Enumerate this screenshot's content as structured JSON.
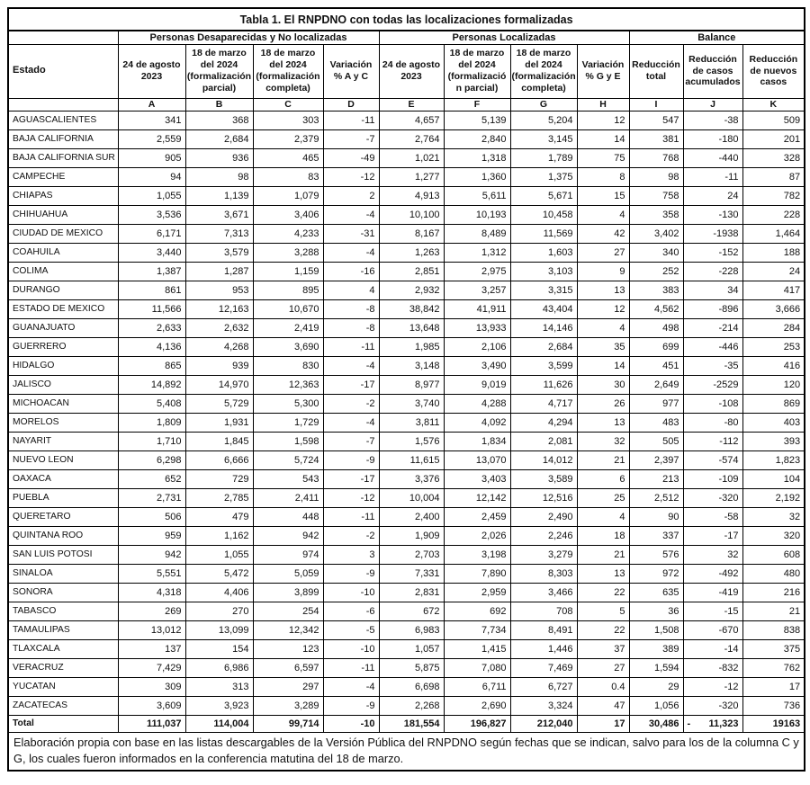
{
  "title": "Tabla 1. El RNPDNO con todas las localizaciones formalizadas",
  "colors": {
    "border": "#000000",
    "text": "#111111",
    "background": "#ffffff"
  },
  "header": {
    "estado_label": "Estado",
    "groups": [
      {
        "label": "Personas Desaparecidas y No localizadas",
        "colspan": 4
      },
      {
        "label": "Personas Localizadas",
        "colspan": 4
      },
      {
        "label": "Balance",
        "colspan": 3
      }
    ],
    "columns": [
      {
        "letter": "A",
        "label": "24 de agosto\n2023"
      },
      {
        "letter": "B",
        "label": "18 de marzo\ndel 2024\n(formalización\nparcial)"
      },
      {
        "letter": "C",
        "label": "18 de marzo\ndel 2024\n(formalización\ncompleta)"
      },
      {
        "letter": "D",
        "label": "Variación\n% A y C"
      },
      {
        "letter": "E",
        "label": "24 de agosto\n2023"
      },
      {
        "letter": "F",
        "label": "18 de marzo\ndel 2024\n(formalizació\nn parcial)"
      },
      {
        "letter": "G",
        "label": "18 de marzo\ndel 2024\n(formalización\ncompleta)"
      },
      {
        "letter": "H",
        "label": "Variación\n% G y E"
      },
      {
        "letter": "I",
        "label": "Reducción\ntotal"
      },
      {
        "letter": "J",
        "label": "Reducción\nde casos\nacumulados"
      },
      {
        "letter": "K",
        "label": "Reducción\nde nuevos\ncasos"
      }
    ]
  },
  "rows": [
    {
      "estado": "AGUASCALIENTES",
      "values": [
        "341",
        "368",
        "303",
        "-11",
        "4,657",
        "5,139",
        "5,204",
        "12",
        "547",
        "-38",
        "509"
      ]
    },
    {
      "estado": "BAJA CALIFORNIA",
      "values": [
        "2,559",
        "2,684",
        "2,379",
        "-7",
        "2,764",
        "2,840",
        "3,145",
        "14",
        "381",
        "-180",
        "201"
      ]
    },
    {
      "estado": "BAJA CALIFORNIA SUR",
      "values": [
        "905",
        "936",
        "465",
        "-49",
        "1,021",
        "1,318",
        "1,789",
        "75",
        "768",
        "-440",
        "328"
      ]
    },
    {
      "estado": "CAMPECHE",
      "values": [
        "94",
        "98",
        "83",
        "-12",
        "1,277",
        "1,360",
        "1,375",
        "8",
        "98",
        "-11",
        "87"
      ]
    },
    {
      "estado": "CHIAPAS",
      "values": [
        "1,055",
        "1,139",
        "1,079",
        "2",
        "4,913",
        "5,611",
        "5,671",
        "15",
        "758",
        "24",
        "782"
      ]
    },
    {
      "estado": "CHIHUAHUA",
      "values": [
        "3,536",
        "3,671",
        "3,406",
        "-4",
        "10,100",
        "10,193",
        "10,458",
        "4",
        "358",
        "-130",
        "228"
      ]
    },
    {
      "estado": "CIUDAD DE MEXICO",
      "values": [
        "6,171",
        "7,313",
        "4,233",
        "-31",
        "8,167",
        "8,489",
        "11,569",
        "42",
        "3,402",
        "-1938",
        "1,464"
      ]
    },
    {
      "estado": "COAHUILA",
      "values": [
        "3,440",
        "3,579",
        "3,288",
        "-4",
        "1,263",
        "1,312",
        "1,603",
        "27",
        "340",
        "-152",
        "188"
      ]
    },
    {
      "estado": "COLIMA",
      "values": [
        "1,387",
        "1,287",
        "1,159",
        "-16",
        "2,851",
        "2,975",
        "3,103",
        "9",
        "252",
        "-228",
        "24"
      ]
    },
    {
      "estado": "DURANGO",
      "values": [
        "861",
        "953",
        "895",
        "4",
        "2,932",
        "3,257",
        "3,315",
        "13",
        "383",
        "34",
        "417"
      ]
    },
    {
      "estado": "ESTADO DE MEXICO",
      "values": [
        "11,566",
        "12,163",
        "10,670",
        "-8",
        "38,842",
        "41,911",
        "43,404",
        "12",
        "4,562",
        "-896",
        "3,666"
      ]
    },
    {
      "estado": "GUANAJUATO",
      "values": [
        "2,633",
        "2,632",
        "2,419",
        "-8",
        "13,648",
        "13,933",
        "14,146",
        "4",
        "498",
        "-214",
        "284"
      ]
    },
    {
      "estado": "GUERRERO",
      "values": [
        "4,136",
        "4,268",
        "3,690",
        "-11",
        "1,985",
        "2,106",
        "2,684",
        "35",
        "699",
        "-446",
        "253"
      ]
    },
    {
      "estado": "HIDALGO",
      "values": [
        "865",
        "939",
        "830",
        "-4",
        "3,148",
        "3,490",
        "3,599",
        "14",
        "451",
        "-35",
        "416"
      ]
    },
    {
      "estado": "JALISCO",
      "values": [
        "14,892",
        "14,970",
        "12,363",
        "-17",
        "8,977",
        "9,019",
        "11,626",
        "30",
        "2,649",
        "-2529",
        "120"
      ]
    },
    {
      "estado": "MICHOACAN",
      "values": [
        "5,408",
        "5,729",
        "5,300",
        "-2",
        "3,740",
        "4,288",
        "4,717",
        "26",
        "977",
        "-108",
        "869"
      ]
    },
    {
      "estado": "MORELOS",
      "values": [
        "1,809",
        "1,931",
        "1,729",
        "-4",
        "3,811",
        "4,092",
        "4,294",
        "13",
        "483",
        "-80",
        "403"
      ]
    },
    {
      "estado": "NAYARIT",
      "values": [
        "1,710",
        "1,845",
        "1,598",
        "-7",
        "1,576",
        "1,834",
        "2,081",
        "32",
        "505",
        "-112",
        "393"
      ]
    },
    {
      "estado": "NUEVO LEON",
      "values": [
        "6,298",
        "6,666",
        "5,724",
        "-9",
        "11,615",
        "13,070",
        "14,012",
        "21",
        "2,397",
        "-574",
        "1,823"
      ]
    },
    {
      "estado": "OAXACA",
      "values": [
        "652",
        "729",
        "543",
        "-17",
        "3,376",
        "3,403",
        "3,589",
        "6",
        "213",
        "-109",
        "104"
      ]
    },
    {
      "estado": "PUEBLA",
      "values": [
        "2,731",
        "2,785",
        "2,411",
        "-12",
        "10,004",
        "12,142",
        "12,516",
        "25",
        "2,512",
        "-320",
        "2,192"
      ]
    },
    {
      "estado": "QUERETARO",
      "values": [
        "506",
        "479",
        "448",
        "-11",
        "2,400",
        "2,459",
        "2,490",
        "4",
        "90",
        "-58",
        "32"
      ]
    },
    {
      "estado": "QUINTANA ROO",
      "values": [
        "959",
        "1,162",
        "942",
        "-2",
        "1,909",
        "2,026",
        "2,246",
        "18",
        "337",
        "-17",
        "320"
      ]
    },
    {
      "estado": "SAN LUIS POTOSI",
      "values": [
        "942",
        "1,055",
        "974",
        "3",
        "2,703",
        "3,198",
        "3,279",
        "21",
        "576",
        "32",
        "608"
      ]
    },
    {
      "estado": "SINALOA",
      "values": [
        "5,551",
        "5,472",
        "5,059",
        "-9",
        "7,331",
        "7,890",
        "8,303",
        "13",
        "972",
        "-492",
        "480"
      ]
    },
    {
      "estado": "SONORA",
      "values": [
        "4,318",
        "4,406",
        "3,899",
        "-10",
        "2,831",
        "2,959",
        "3,466",
        "22",
        "635",
        "-419",
        "216"
      ]
    },
    {
      "estado": "TABASCO",
      "values": [
        "269",
        "270",
        "254",
        "-6",
        "672",
        "692",
        "708",
        "5",
        "36",
        "-15",
        "21"
      ]
    },
    {
      "estado": "TAMAULIPAS",
      "values": [
        "13,012",
        "13,099",
        "12,342",
        "-5",
        "6,983",
        "7,734",
        "8,491",
        "22",
        "1,508",
        "-670",
        "838"
      ]
    },
    {
      "estado": "TLAXCALA",
      "values": [
        "137",
        "154",
        "123",
        "-10",
        "1,057",
        "1,415",
        "1,446",
        "37",
        "389",
        "-14",
        "375"
      ]
    },
    {
      "estado": "VERACRUZ",
      "values": [
        "7,429",
        "6,986",
        "6,597",
        "-11",
        "5,875",
        "7,080",
        "7,469",
        "27",
        "1,594",
        "-832",
        "762"
      ]
    },
    {
      "estado": "YUCATAN",
      "values": [
        "309",
        "313",
        "297",
        "-4",
        "6,698",
        "6,711",
        "6,727",
        "0.4",
        "29",
        "-12",
        "17"
      ]
    },
    {
      "estado": "ZACATECAS",
      "values": [
        "3,609",
        "3,923",
        "3,289",
        "-9",
        "2,268",
        "2,690",
        "3,324",
        "47",
        "1,056",
        "-320",
        "736"
      ]
    }
  ],
  "total_row": {
    "estado": "Total",
    "values": [
      "111,037",
      "114,004",
      "99,714",
      "-10",
      "181,554",
      "196,827",
      "212,040",
      "17",
      "30,486",
      "11,323",
      "19163"
    ],
    "j_dash": "-"
  },
  "footnote": "Elaboración propia con base en las listas descargables de la Versión Pública del RNPDNO según fechas que se indican, salvo para los de la columna C y G, los cuales fueron informados en la conferencia matutina del 18 de marzo."
}
